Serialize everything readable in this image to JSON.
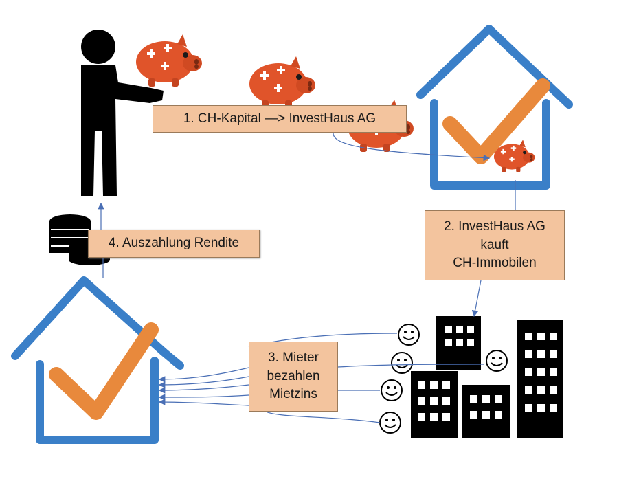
{
  "diagram": {
    "colors": {
      "house_outline": "#3a7fc8",
      "checkmark": "#e8893c",
      "label_fill": "#f3c49e",
      "label_border": "#9a7a5a",
      "connector": "#4a6fb5",
      "silhouette": "#000000",
      "piggy_bank": "#e0542a"
    },
    "icons": [
      "person-icon",
      "piggy-bank-icon",
      "house-check-icon",
      "coins-icon",
      "buildings-icon",
      "smiley-icon"
    ],
    "steps": {
      "step1": "1. CH-Kapital  —> InvestHaus AG",
      "step2": {
        "line1": "2. InvestHaus AG",
        "line2": "kauft",
        "line3": "CH-Immobilen"
      },
      "step3": {
        "line1": "3. Mieter",
        "line2": "bezahlen",
        "line3": "Mietzins"
      },
      "step4": "4. Auszahlung Rendite"
    }
  }
}
